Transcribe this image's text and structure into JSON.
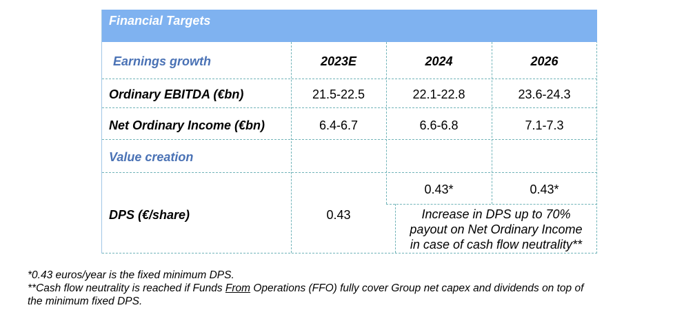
{
  "banner": {
    "title": "Financial Targets"
  },
  "header": {
    "section": "Earnings growth",
    "years": [
      "2023E",
      "2024",
      "2026"
    ]
  },
  "rows": {
    "ebitda": {
      "label": "Ordinary EBITDA (€bn)",
      "values": [
        "21.5-22.5",
        "22.1-22.8",
        "23.6-24.3"
      ]
    },
    "net_income": {
      "label": "Net Ordinary Income (€bn)",
      "values": [
        "6.4-6.7",
        "6.6-6.8",
        "7.1-7.3"
      ]
    },
    "value_creation": {
      "label": "Value creation"
    },
    "dps": {
      "label": "DPS (€/share)",
      "value_2023": "0.43",
      "value_2024": "0.43*",
      "value_2026": "0.43*",
      "increase_note": [
        "Increase in DPS up to 70%",
        "payout on Net Ordinary Income",
        "in case of cash flow neutrality**"
      ]
    }
  },
  "footnotes": {
    "line1": "*0.43 euros/year is the fixed minimum DPS.",
    "line2_a": "**Cash flow neutrality is reached if Funds ",
    "line2_from": "From",
    "line2_b": " Operations (FFO) fully cover Group net capex and dividends on top of",
    "line3": "the minimum fixed DPS."
  }
}
